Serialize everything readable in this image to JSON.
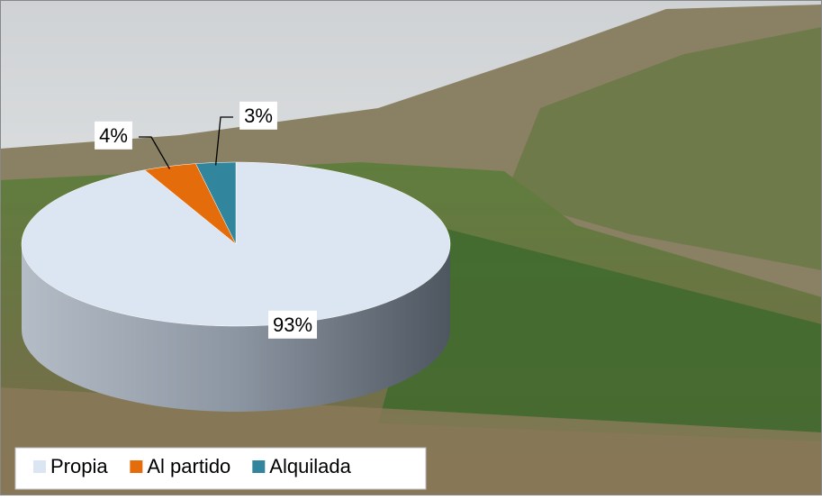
{
  "chart_data": {
    "type": "pie",
    "categories": [
      "Propia",
      "Al partido",
      "Alquilada"
    ],
    "values": [
      93,
      4,
      3
    ],
    "value_labels": [
      "93%",
      "4%",
      "3%"
    ],
    "colors": [
      "#dce6f2",
      "#e46c0a",
      "#31859c"
    ],
    "legend": "bottom"
  }
}
